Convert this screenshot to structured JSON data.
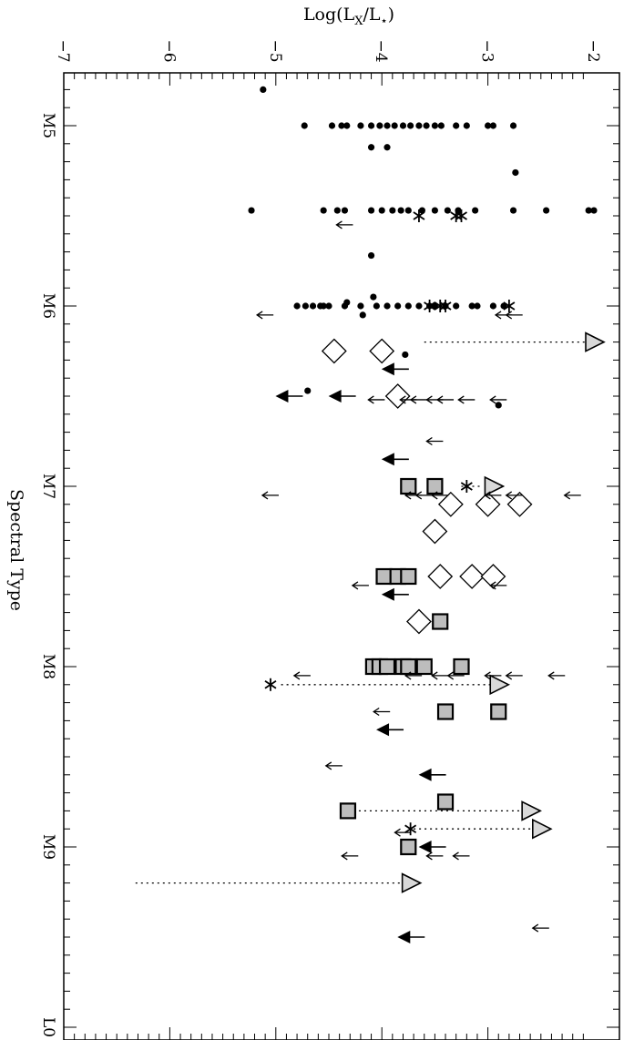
{
  "chart_data": {
    "type": "scatter",
    "orientation": "rotated-90",
    "title": "",
    "xlabel": "Spectral Type",
    "ylabel": "Log(L_X/L_*)",
    "ylabel_parts": {
      "main": "Log(L",
      "sub1": "X",
      "mid": "/L",
      "sub2": "⋆",
      "end": ")"
    },
    "x_axis_position": "left",
    "y_axis_position": "top",
    "grid": false,
    "legend": "none",
    "xlim": [
      4.6,
      10.0
    ],
    "ylim": [
      -7,
      -2
    ],
    "x_ticks": [
      {
        "value": 5,
        "label": "M5"
      },
      {
        "value": 6,
        "label": "M6"
      },
      {
        "value": 7,
        "label": "M7"
      },
      {
        "value": 8,
        "label": "M8"
      },
      {
        "value": 9,
        "label": "M9"
      },
      {
        "value": 10,
        "label": "L0"
      }
    ],
    "y_ticks": [
      {
        "value": -7,
        "label": "−7"
      },
      {
        "value": -6,
        "label": "−6"
      },
      {
        "value": -5,
        "label": "−5"
      },
      {
        "value": -4,
        "label": "−4"
      },
      {
        "value": -3,
        "label": "−3"
      },
      {
        "value": -2,
        "label": "−2"
      }
    ],
    "series": [
      {
        "marker": "filled-circle",
        "points": [
          [
            4.8,
            -5.12
          ],
          [
            5.0,
            -4.73
          ],
          [
            5.0,
            -4.47
          ],
          [
            5.0,
            -4.38
          ],
          [
            5.0,
            -4.33
          ],
          [
            5.0,
            -4.2
          ],
          [
            5.0,
            -4.1
          ],
          [
            5.0,
            -4.02
          ],
          [
            5.0,
            -3.95
          ],
          [
            5.0,
            -3.88
          ],
          [
            5.0,
            -3.8
          ],
          [
            5.0,
            -3.73
          ],
          [
            5.0,
            -3.65
          ],
          [
            5.0,
            -3.58
          ],
          [
            5.0,
            -3.5
          ],
          [
            5.0,
            -3.44
          ],
          [
            5.0,
            -3.3
          ],
          [
            5.0,
            -3.2
          ],
          [
            5.0,
            -3.0
          ],
          [
            5.0,
            -2.95
          ],
          [
            5.0,
            -2.76
          ],
          [
            5.12,
            -4.1
          ],
          [
            5.12,
            -3.95
          ],
          [
            5.26,
            -2.74
          ],
          [
            5.47,
            -5.23
          ],
          [
            5.47,
            -4.55
          ],
          [
            5.47,
            -4.42
          ],
          [
            5.47,
            -4.35
          ],
          [
            5.47,
            -4.1
          ],
          [
            5.47,
            -4.0
          ],
          [
            5.47,
            -3.9
          ],
          [
            5.47,
            -3.82
          ],
          [
            5.47,
            -3.75
          ],
          [
            5.47,
            -3.62
          ],
          [
            5.47,
            -3.5
          ],
          [
            5.47,
            -3.38
          ],
          [
            5.47,
            -3.28
          ],
          [
            5.47,
            -3.12
          ],
          [
            5.47,
            -2.76
          ],
          [
            5.47,
            -2.45
          ],
          [
            5.47,
            -2.05
          ],
          [
            5.47,
            -2.0
          ],
          [
            5.72,
            -4.1
          ],
          [
            5.95,
            -4.08
          ],
          [
            5.98,
            -4.33
          ],
          [
            6.0,
            -4.8
          ],
          [
            6.0,
            -4.72
          ],
          [
            6.0,
            -4.65
          ],
          [
            6.0,
            -4.58
          ],
          [
            6.0,
            -4.55
          ],
          [
            6.0,
            -4.5
          ],
          [
            6.0,
            -4.35
          ],
          [
            6.0,
            -4.2
          ],
          [
            6.0,
            -4.05
          ],
          [
            6.0,
            -3.95
          ],
          [
            6.0,
            -3.85
          ],
          [
            6.0,
            -3.75
          ],
          [
            6.0,
            -3.65
          ],
          [
            6.0,
            -3.55
          ],
          [
            6.0,
            -3.5
          ],
          [
            6.0,
            -3.4
          ],
          [
            6.0,
            -3.3
          ],
          [
            6.0,
            -3.15
          ],
          [
            6.0,
            -3.1
          ],
          [
            6.0,
            -2.95
          ],
          [
            6.0,
            -2.85
          ],
          [
            6.05,
            -4.18
          ],
          [
            6.25,
            -4.0
          ],
          [
            6.27,
            -3.78
          ],
          [
            6.47,
            -4.7
          ],
          [
            6.55,
            -2.9
          ]
        ]
      },
      {
        "marker": "star",
        "points": [
          [
            5.5,
            -3.65
          ],
          [
            5.5,
            -3.3
          ],
          [
            5.5,
            -3.25
          ],
          [
            6.0,
            -3.55
          ],
          [
            6.0,
            -3.45
          ],
          [
            6.0,
            -3.4
          ],
          [
            6.0,
            -2.8
          ],
          [
            7.0,
            -3.2
          ],
          [
            8.1,
            -5.05
          ],
          [
            8.9,
            -3.73
          ]
        ]
      },
      {
        "marker": "open-diamond",
        "points": [
          [
            6.25,
            -4.45
          ],
          [
            6.25,
            -4.0
          ],
          [
            6.5,
            -3.85
          ],
          [
            7.1,
            -3.35
          ],
          [
            7.1,
            -3.0
          ],
          [
            7.1,
            -2.7
          ],
          [
            7.25,
            -3.5
          ],
          [
            7.5,
            -3.45
          ],
          [
            7.5,
            -3.15
          ],
          [
            7.5,
            -2.95
          ],
          [
            7.75,
            -3.65
          ]
        ]
      },
      {
        "marker": "gray-square",
        "points": [
          [
            7.0,
            -3.75
          ],
          [
            7.0,
            -3.5
          ],
          [
            7.5,
            -3.98
          ],
          [
            7.5,
            -3.85
          ],
          [
            7.5,
            -3.75
          ],
          [
            7.75,
            -3.45
          ],
          [
            8.0,
            -4.08
          ],
          [
            8.0,
            -4.02
          ],
          [
            8.0,
            -3.95
          ],
          [
            8.0,
            -3.8
          ],
          [
            8.0,
            -3.75
          ],
          [
            8.0,
            -3.6
          ],
          [
            8.0,
            -3.25
          ],
          [
            8.25,
            -3.4
          ],
          [
            8.25,
            -2.9
          ],
          [
            8.75,
            -3.4
          ],
          [
            8.8,
            -4.32
          ],
          [
            9.0,
            -3.75
          ]
        ]
      },
      {
        "marker": "open-triangle",
        "points": [
          [
            6.2,
            -2.0
          ],
          [
            7.0,
            -2.95
          ],
          [
            8.1,
            -2.9
          ],
          [
            8.8,
            -2.6
          ],
          [
            8.9,
            -2.5
          ],
          [
            9.2,
            -3.73
          ]
        ]
      },
      {
        "marker": "small-arrow",
        "points": [
          [
            5.55,
            -4.35
          ],
          [
            6.05,
            -5.1
          ],
          [
            6.05,
            -2.85
          ],
          [
            6.05,
            -2.75
          ],
          [
            6.52,
            -4.05
          ],
          [
            6.52,
            -3.75
          ],
          [
            6.52,
            -3.65
          ],
          [
            6.52,
            -3.5
          ],
          [
            6.52,
            -3.4
          ],
          [
            6.52,
            -3.2
          ],
          [
            6.52,
            -2.9
          ],
          [
            6.75,
            -3.5
          ],
          [
            7.05,
            -5.05
          ],
          [
            7.05,
            -3.7
          ],
          [
            7.05,
            -3.6
          ],
          [
            7.05,
            -3.45
          ],
          [
            7.05,
            -2.95
          ],
          [
            7.05,
            -2.75
          ],
          [
            7.05,
            -2.2
          ],
          [
            7.55,
            -4.2
          ],
          [
            7.55,
            -2.9
          ],
          [
            8.05,
            -4.75
          ],
          [
            8.05,
            -3.7
          ],
          [
            8.05,
            -3.45
          ],
          [
            8.05,
            -3.3
          ],
          [
            8.05,
            -2.95
          ],
          [
            8.05,
            -2.75
          ],
          [
            8.05,
            -2.35
          ],
          [
            8.25,
            -4.0
          ],
          [
            8.55,
            -4.45
          ],
          [
            8.92,
            -3.8
          ],
          [
            9.05,
            -4.3
          ],
          [
            9.05,
            -3.5
          ],
          [
            9.05,
            -3.25
          ],
          [
            9.45,
            -2.5
          ]
        ]
      },
      {
        "marker": "big-filled-arrow",
        "points": [
          [
            6.35,
            -3.9
          ],
          [
            6.5,
            -4.9
          ],
          [
            6.5,
            -4.4
          ],
          [
            6.85,
            -3.9
          ],
          [
            7.6,
            -3.9
          ],
          [
            8.35,
            -3.95
          ],
          [
            8.6,
            -3.55
          ],
          [
            9.0,
            -3.55
          ],
          [
            9.5,
            -3.75
          ]
        ]
      }
    ],
    "links": [
      {
        "x": 6.2,
        "y_from": -3.6,
        "y_to": -2.0
      },
      {
        "x": 7.0,
        "y_from": -3.25,
        "y_to": -3.05
      },
      {
        "x": 8.1,
        "y_from": -4.95,
        "y_to": -2.95
      },
      {
        "x": 8.8,
        "y_from": -4.32,
        "y_to": -2.65
      },
      {
        "x": 8.9,
        "y_from": -3.7,
        "y_to": -2.55
      },
      {
        "x": 9.2,
        "y_from": -3.78,
        "y_to": -6.35
      }
    ]
  }
}
